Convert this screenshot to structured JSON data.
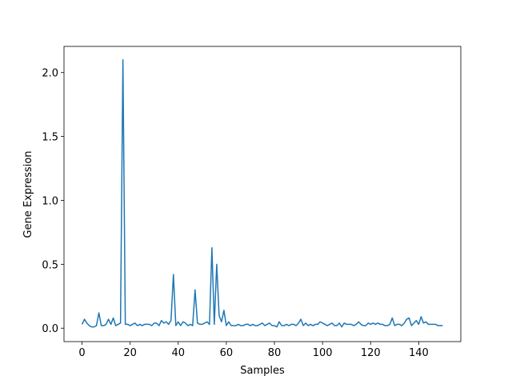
{
  "chart_data": {
    "type": "line",
    "x_label": "Samples",
    "y_label": "Gene Expression",
    "color": "#1f77b4",
    "x": [
      0,
      1,
      2,
      3,
      4,
      5,
      6,
      7,
      8,
      9,
      10,
      11,
      12,
      13,
      14,
      15,
      16,
      17,
      18,
      19,
      20,
      21,
      22,
      23,
      24,
      25,
      26,
      27,
      28,
      29,
      30,
      31,
      32,
      33,
      34,
      35,
      36,
      37,
      38,
      39,
      40,
      41,
      42,
      43,
      44,
      45,
      46,
      47,
      48,
      49,
      50,
      51,
      52,
      53,
      54,
      55,
      56,
      57,
      58,
      59,
      60,
      61,
      62,
      63,
      64,
      65,
      66,
      67,
      68,
      69,
      70,
      71,
      72,
      73,
      74,
      75,
      76,
      77,
      78,
      79,
      80,
      81,
      82,
      83,
      84,
      85,
      86,
      87,
      88,
      89,
      90,
      91,
      92,
      93,
      94,
      95,
      96,
      97,
      98,
      99,
      100,
      101,
      102,
      103,
      104,
      105,
      106,
      107,
      108,
      109,
      110,
      111,
      112,
      113,
      114,
      115,
      116,
      117,
      118,
      119,
      120,
      121,
      122,
      123,
      124,
      125,
      126,
      127,
      128,
      129,
      130,
      131,
      132,
      133,
      134,
      135,
      136,
      137,
      138,
      139,
      140,
      141,
      142,
      143,
      144,
      145,
      146,
      147,
      148,
      149,
      150
    ],
    "values": [
      0.03,
      0.07,
      0.04,
      0.02,
      0.01,
      0.01,
      0.02,
      0.12,
      0.02,
      0.02,
      0.03,
      0.07,
      0.03,
      0.08,
      0.02,
      0.03,
      0.04,
      2.1,
      0.03,
      0.03,
      0.02,
      0.03,
      0.04,
      0.02,
      0.03,
      0.02,
      0.03,
      0.03,
      0.03,
      0.02,
      0.04,
      0.04,
      0.02,
      0.06,
      0.04,
      0.05,
      0.03,
      0.06,
      0.42,
      0.02,
      0.05,
      0.02,
      0.05,
      0.04,
      0.02,
      0.03,
      0.02,
      0.3,
      0.04,
      0.03,
      0.03,
      0.04,
      0.05,
      0.03,
      0.63,
      0.03,
      0.5,
      0.1,
      0.05,
      0.14,
      0.02,
      0.05,
      0.02,
      0.02,
      0.02,
      0.03,
      0.02,
      0.02,
      0.03,
      0.03,
      0.02,
      0.03,
      0.02,
      0.02,
      0.03,
      0.04,
      0.02,
      0.03,
      0.04,
      0.02,
      0.02,
      0.01,
      0.05,
      0.02,
      0.02,
      0.03,
      0.02,
      0.03,
      0.03,
      0.02,
      0.04,
      0.07,
      0.02,
      0.04,
      0.02,
      0.03,
      0.02,
      0.03,
      0.03,
      0.05,
      0.04,
      0.03,
      0.02,
      0.03,
      0.04,
      0.02,
      0.02,
      0.04,
      0.01,
      0.04,
      0.03,
      0.03,
      0.03,
      0.02,
      0.03,
      0.05,
      0.03,
      0.02,
      0.02,
      0.04,
      0.03,
      0.04,
      0.03,
      0.04,
      0.03,
      0.03,
      0.02,
      0.02,
      0.03,
      0.08,
      0.02,
      0.03,
      0.03,
      0.02,
      0.04,
      0.07,
      0.08,
      0.02,
      0.04,
      0.06,
      0.03,
      0.09,
      0.04,
      0.05,
      0.03,
      0.03,
      0.03,
      0.03,
      0.02,
      0.02,
      0.02
    ],
    "xlim": [
      -7.5,
      157.5
    ],
    "xticks": [
      0,
      20,
      40,
      60,
      80,
      100,
      120,
      140
    ],
    "ylim": [
      -0.105,
      2.205
    ],
    "yticks": [
      {
        "value": 0,
        "label": "0.0"
      },
      0.5,
      {
        "value": 1,
        "label": "1.0"
      },
      1.5,
      {
        "value": 2,
        "label": "2.0"
      }
    ]
  }
}
